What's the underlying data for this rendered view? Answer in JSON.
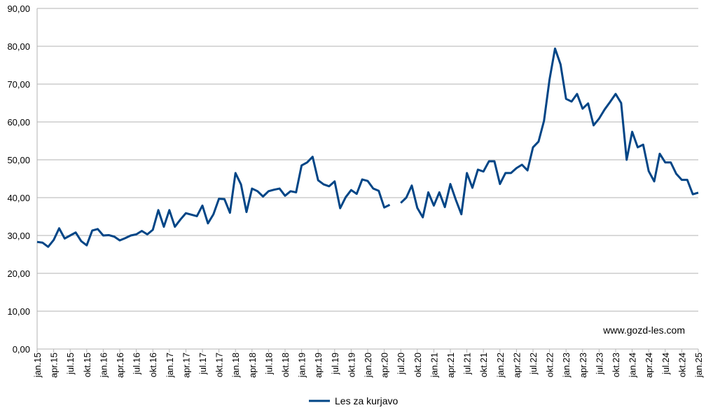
{
  "chart_data": {
    "type": "line",
    "categories": [
      "jan.15",
      null,
      null,
      "apr.15",
      null,
      null,
      "jul.15",
      null,
      null,
      "okt.15",
      null,
      null,
      "jan.16",
      null,
      null,
      "apr.16",
      null,
      null,
      "jul.16",
      null,
      null,
      "okt.16",
      null,
      null,
      "jan.17",
      null,
      null,
      "apr.17",
      null,
      null,
      "jul.17",
      null,
      null,
      "okt.17",
      null,
      null,
      "jan.18",
      null,
      null,
      "apr.18",
      null,
      null,
      "jul.18",
      null,
      null,
      "okt.18",
      null,
      null,
      "jan.19",
      null,
      null,
      "apr.19",
      null,
      null,
      "jul.19",
      null,
      null,
      "okt.19",
      null,
      null,
      "jan.20",
      null,
      null,
      "apr.20",
      null,
      null,
      "jul.20",
      null,
      null,
      "okt.20",
      null,
      null,
      "jan.21",
      null,
      null,
      "apr.21",
      null,
      null,
      "jul.21",
      null,
      null,
      "okt.21",
      null,
      null,
      "jan.22",
      null,
      null,
      "apr.22",
      null,
      null,
      "jul.22",
      null,
      null,
      "okt.22",
      null,
      null,
      "jan.23",
      null,
      null,
      "apr.23",
      null,
      null,
      "jul.23",
      null,
      null,
      "okt.23",
      null,
      null,
      "jan.24",
      null,
      null,
      "apr.24",
      null,
      null,
      "jul.24",
      null,
      null,
      "okt.24",
      null,
      null,
      "jan.25"
    ],
    "series": [
      {
        "name": "Les za kurjavo",
        "color": "#004586",
        "values": [
          28.3,
          28.1,
          27.0,
          28.8,
          31.9,
          29.2,
          30.0,
          30.8,
          28.5,
          27.4,
          31.3,
          31.7,
          30.0,
          30.1,
          29.7,
          28.7,
          29.3,
          30.0,
          30.3,
          31.2,
          30.3,
          31.5,
          36.7,
          32.3,
          36.7,
          32.3,
          34.2,
          35.9,
          35.5,
          35.1,
          37.9,
          33.2,
          35.6,
          39.7,
          39.6,
          36.0,
          46.5,
          43.5,
          36.2,
          42.4,
          41.7,
          40.3,
          41.7,
          42.1,
          42.4,
          40.5,
          41.7,
          41.4,
          48.5,
          49.3,
          50.8,
          44.6,
          43.5,
          43.0,
          44.3,
          37.2,
          40.1,
          42.0,
          41.0,
          44.8,
          44.4,
          42.4,
          41.8,
          37.4,
          38.1,
          null,
          38.6,
          40.0,
          43.2,
          37.3,
          34.8,
          41.4,
          37.9,
          41.4,
          37.5,
          43.6,
          39.4,
          35.6,
          46.5,
          42.6,
          47.4,
          46.9,
          49.6,
          49.6,
          43.6,
          46.5,
          46.5,
          47.8,
          48.7,
          47.2,
          53.3,
          54.8,
          60.3,
          71.2,
          79.4,
          75.2,
          66.1,
          65.4,
          67.4,
          63.5,
          64.9,
          59.1,
          60.9,
          63.3,
          65.3,
          67.4,
          65.0,
          50.0,
          57.4,
          53.3,
          54.0,
          47.0,
          44.3,
          51.6,
          49.3,
          49.3,
          46.3,
          44.7,
          44.7,
          40.9,
          41.3
        ]
      }
    ],
    "ylim": [
      0,
      90
    ],
    "yticks": [
      {
        "value": 0,
        "label": "0,00"
      },
      {
        "value": 10,
        "label": "10,00"
      },
      {
        "value": 20,
        "label": "20,00"
      },
      {
        "value": 30,
        "label": "30,00"
      },
      {
        "value": 40,
        "label": "40,00"
      },
      {
        "value": 50,
        "label": "50,00"
      },
      {
        "value": 60,
        "label": "60,00"
      },
      {
        "value": 70,
        "label": "70,00"
      },
      {
        "value": 80,
        "label": "80,00"
      },
      {
        "value": 90,
        "label": "90,00"
      }
    ],
    "grid": true,
    "annotation": "www.gozd-les.com",
    "legend": "bottom"
  }
}
